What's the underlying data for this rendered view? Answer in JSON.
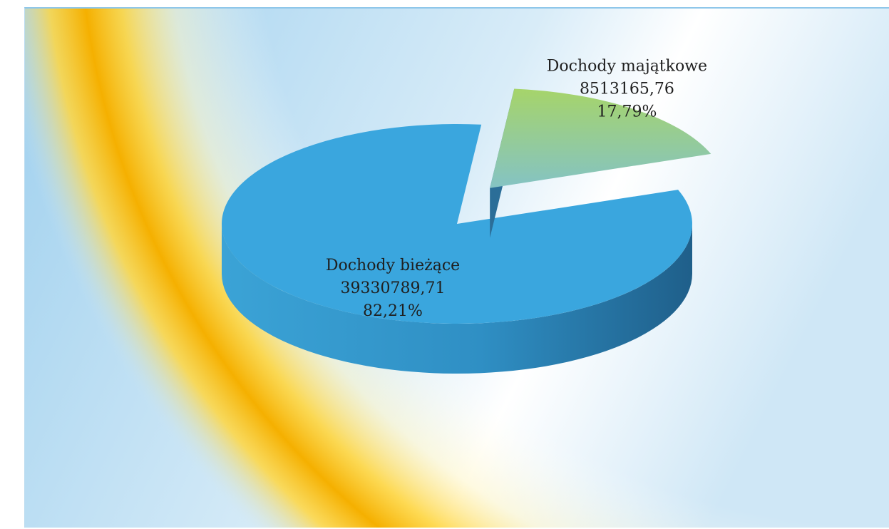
{
  "chart_data": {
    "type": "pie",
    "title": "",
    "slices": [
      {
        "name": "Dochody bieżące",
        "value": 39330789.71,
        "value_label": "39330789,71",
        "percent_label": "82,21%",
        "color": "#3aa6de"
      },
      {
        "name": "Dochody majątkowe",
        "value": 8513165.76,
        "value_label": "8513165,76",
        "percent_label": "17,79%",
        "color": "#8fcf9e"
      }
    ],
    "exploded_slice": "Dochody majątkowe",
    "style": "3d",
    "legend": "none",
    "colors": {
      "accent_glow": "#f5b800",
      "background": "#bfe0f3"
    }
  }
}
